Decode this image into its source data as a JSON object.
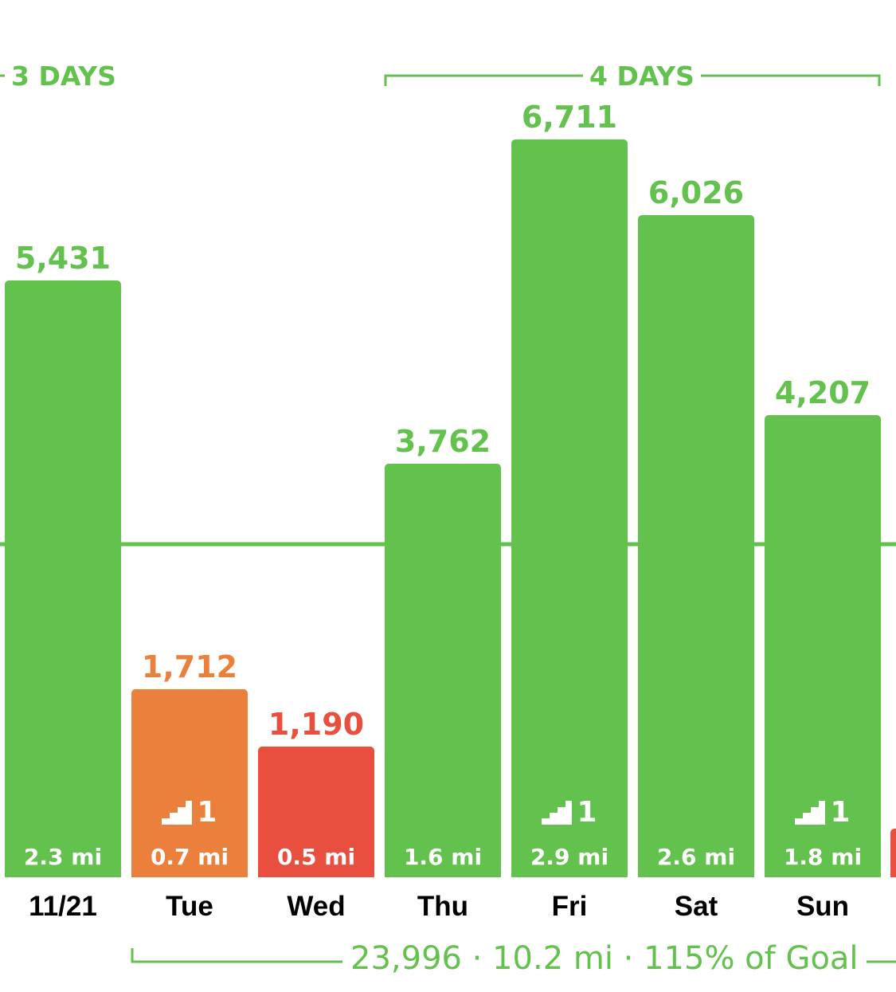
{
  "streaks": [
    {
      "label": "3 DAYS"
    },
    {
      "label": "4 DAYS"
    }
  ],
  "summary": "23,996 · 10.2 mi · 115% of Goal",
  "colors": {
    "green": "#63c14d",
    "orange": "#ea803b",
    "red": "#e84f3f",
    "goal_line": "#63c14d"
  },
  "chart_data": {
    "type": "bar",
    "categories": [
      "11/21",
      "Tue",
      "Wed",
      "Thu",
      "Fri",
      "Sat",
      "Sun"
    ],
    "values": [
      5431,
      1712,
      1190,
      3762,
      6711,
      6026,
      4207
    ],
    "value_labels": [
      "5,431",
      "1,712",
      "1,190",
      "3,762",
      "6,711",
      "6,026",
      "4,207"
    ],
    "distances": [
      "2.3 mi",
      "0.7 mi",
      "0.5 mi",
      "1.6 mi",
      "2.9 mi",
      "2.6 mi",
      "1.8 mi"
    ],
    "floors": [
      null,
      "1",
      null,
      null,
      "1",
      null,
      "1"
    ],
    "bar_colors": [
      "green",
      "orange",
      "red",
      "green",
      "green",
      "green",
      "green"
    ],
    "goal": 3000,
    "ylim": [
      0,
      7200
    ],
    "grid": false
  }
}
